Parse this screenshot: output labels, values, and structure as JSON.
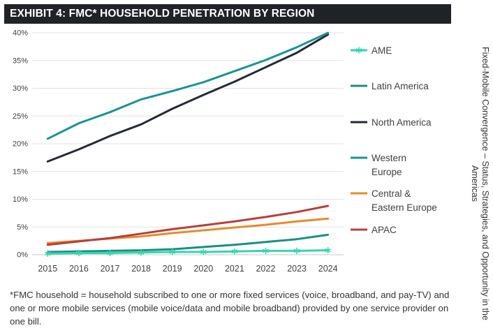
{
  "title": "EXHIBIT 4: FMC* HOUSEHOLD PENETRATION BY REGION",
  "footnote": "*FMC household = household subscribed to one or more fixed services (voice, broadband, and pay-TV) and one or more mobile services (mobile voice/data and mobile broadband) provided by one service provider on one bill.",
  "side_caption": "Fixed-Mobile Convergence – Status, Strategies, and Opportunity in the Americas",
  "chart_data": {
    "type": "line",
    "categories": [
      "2015",
      "2016",
      "2017",
      "2018",
      "2019",
      "2020",
      "2021",
      "2022",
      "2023",
      "2024"
    ],
    "ylim": [
      0,
      40
    ],
    "yticks": [
      "0%",
      "5%",
      "10%",
      "15%",
      "20%",
      "25%",
      "30%",
      "35%",
      "40%"
    ],
    "ytick_values": [
      0,
      5,
      10,
      15,
      20,
      25,
      30,
      35,
      40
    ],
    "grid": true,
    "legend_position": "right",
    "series": [
      {
        "name": "AME",
        "color": "#33d6b0",
        "marker": "asterisk",
        "values": [
          0.2,
          0.3,
          0.3,
          0.4,
          0.5,
          0.5,
          0.6,
          0.7,
          0.7,
          0.8
        ]
      },
      {
        "name": "Latin America",
        "color": "#1a8f80",
        "values": [
          0.5,
          0.6,
          0.7,
          0.8,
          1.0,
          1.4,
          1.8,
          2.3,
          2.8,
          3.6
        ]
      },
      {
        "name": "North America",
        "color": "#242a35",
        "values": [
          16.8,
          19.0,
          21.4,
          23.5,
          26.3,
          28.8,
          31.2,
          33.8,
          36.4,
          39.7
        ]
      },
      {
        "name": "Western Europe",
        "color": "#1a9399",
        "values": [
          20.9,
          23.7,
          25.7,
          28.0,
          29.5,
          31.1,
          33.1,
          35.1,
          37.4,
          40.0
        ]
      },
      {
        "name": "Central & Eastern Europe",
        "color": "#e98a2c",
        "values": [
          2.1,
          2.5,
          2.9,
          3.3,
          3.9,
          4.4,
          4.9,
          5.4,
          6.0,
          6.5
        ]
      },
      {
        "name": "APAC",
        "color": "#b5403a",
        "values": [
          1.8,
          2.4,
          3.0,
          3.8,
          4.6,
          5.3,
          6.0,
          6.8,
          7.7,
          8.8
        ]
      }
    ],
    "legend": [
      {
        "series": 0,
        "lines": [
          "AME"
        ]
      },
      {
        "series": 1,
        "lines": [
          "Latin America"
        ]
      },
      {
        "series": 2,
        "lines": [
          "North America"
        ]
      },
      {
        "series": 3,
        "lines": [
          "Western",
          "Europe"
        ]
      },
      {
        "series": 4,
        "lines": [
          "Central &",
          "Eastern Europe"
        ]
      },
      {
        "series": 5,
        "lines": [
          "APAC"
        ]
      }
    ]
  }
}
